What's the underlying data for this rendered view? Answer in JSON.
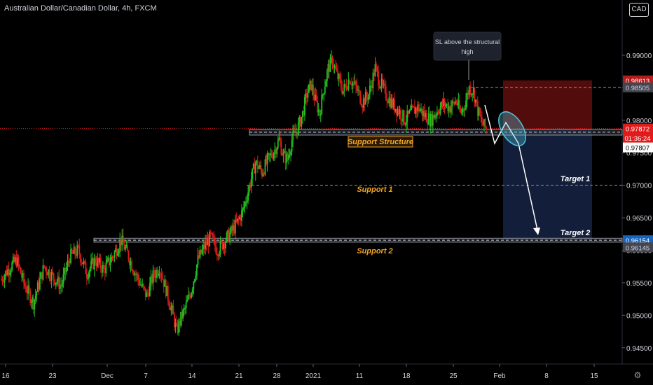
{
  "header": {
    "title": "Australian Dollar/Canadian Dollar, 4h, FXCM",
    "currency_label": "CAD"
  },
  "colors": {
    "background": "#000000",
    "up_candle": "#21c421",
    "down_candle": "#e01b1b",
    "axis_text": "#d1d4dc",
    "annotation_orange": "#f5a623",
    "stop_zone": "#5c0d0d",
    "target_zone": "#14213d",
    "current_price_tag": "#e01b1b"
  },
  "chart_data": {
    "type": "candlestick",
    "symbol": "AUD/CAD",
    "timeframe": "4h",
    "x_tick_labels": [
      "16",
      "23",
      "Dec",
      "7",
      "14",
      "21",
      "28",
      "2021",
      "11",
      "18",
      "25",
      "Feb",
      "8",
      "15"
    ],
    "y_tick_labels": [
      "0.99000",
      "0.98500",
      "0.98000",
      "0.97500",
      "0.97000",
      "0.96500",
      "0.96000",
      "0.95500",
      "0.95000",
      "0.94500"
    ],
    "ylim": [
      0.9425,
      0.9985
    ],
    "price_tags": [
      {
        "label": "0.98613",
        "value": 0.98613,
        "kind": "stop"
      },
      {
        "label": "0.98505",
        "value": 0.98505,
        "kind": "level"
      },
      {
        "label": "0.97872",
        "value": 0.97872,
        "kind": "current"
      },
      {
        "label": "01:36:24",
        "value": 0.9773,
        "kind": "countdown"
      },
      {
        "label": "0.97807",
        "value": 0.97582,
        "kind": "entry"
      },
      {
        "label": "0.96154",
        "value": 0.96154,
        "kind": "target"
      },
      {
        "label": "0.96145",
        "value": 0.96045,
        "kind": "level"
      }
    ],
    "annotations": {
      "callout": "SL above the structural high",
      "support_structure": "Support Structure",
      "support_1": "Support 1",
      "support_2": "Support 2",
      "target_1": "Target 1",
      "target_2": "Target 2"
    },
    "levels": {
      "support_structure": [
        0.97772,
        0.9786
      ],
      "support_1": 0.97,
      "support_2": [
        0.96125,
        0.96185
      ],
      "structural_high": 0.98505,
      "stop_loss": 0.98613,
      "target_1": 0.97,
      "target_2": 0.96154
    },
    "anchor_points": [
      [
        0,
        0.9555
      ],
      [
        6,
        0.957
      ],
      [
        14,
        0.9585
      ],
      [
        22,
        0.9545
      ],
      [
        30,
        0.952
      ],
      [
        40,
        0.9575
      ],
      [
        48,
        0.956
      ],
      [
        56,
        0.9545
      ],
      [
        64,
        0.959
      ],
      [
        72,
        0.96
      ],
      [
        80,
        0.9565
      ],
      [
        88,
        0.9585
      ],
      [
        96,
        0.957
      ],
      [
        104,
        0.959
      ],
      [
        112,
        0.9615
      ],
      [
        118,
        0.9595
      ],
      [
        124,
        0.957
      ],
      [
        130,
        0.9548
      ],
      [
        136,
        0.953
      ],
      [
        142,
        0.956
      ],
      [
        148,
        0.9575
      ],
      [
        154,
        0.954
      ],
      [
        160,
        0.9505
      ],
      [
        164,
        0.9475
      ],
      [
        168,
        0.9495
      ],
      [
        172,
        0.951
      ],
      [
        178,
        0.954
      ],
      [
        184,
        0.9585
      ],
      [
        190,
        0.9605
      ],
      [
        196,
        0.962
      ],
      [
        202,
        0.96
      ],
      [
        208,
        0.9612
      ],
      [
        214,
        0.9625
      ],
      [
        220,
        0.964
      ],
      [
        226,
        0.966
      ],
      [
        230,
        0.9685
      ],
      [
        234,
        0.971
      ],
      [
        238,
        0.9735
      ],
      [
        244,
        0.972
      ],
      [
        250,
        0.974
      ],
      [
        256,
        0.9755
      ],
      [
        260,
        0.977
      ],
      [
        264,
        0.9745
      ],
      [
        268,
        0.974
      ],
      [
        272,
        0.977
      ],
      [
        278,
        0.979
      ],
      [
        282,
        0.981
      ],
      [
        286,
        0.984
      ],
      [
        290,
        0.9855
      ],
      [
        294,
        0.983
      ],
      [
        298,
        0.981
      ],
      [
        302,
        0.985
      ],
      [
        306,
        0.988
      ],
      [
        310,
        0.9892
      ],
      [
        314,
        0.987
      ],
      [
        320,
        0.9845
      ],
      [
        326,
        0.9865
      ],
      [
        332,
        0.985
      ],
      [
        338,
        0.9828
      ],
      [
        344,
        0.984
      ],
      [
        350,
        0.988
      ],
      [
        354,
        0.986
      ],
      [
        360,
        0.984
      ],
      [
        366,
        0.9825
      ],
      [
        372,
        0.9815
      ],
      [
        378,
        0.98
      ],
      [
        384,
        0.9812
      ],
      [
        390,
        0.982
      ],
      [
        396,
        0.9808
      ],
      [
        402,
        0.98
      ],
      [
        408,
        0.9815
      ],
      [
        414,
        0.9825
      ],
      [
        420,
        0.982
      ],
      [
        426,
        0.983
      ],
      [
        430,
        0.981
      ],
      [
        434,
        0.9825
      ],
      [
        438,
        0.985
      ],
      [
        442,
        0.9845
      ],
      [
        446,
        0.9815
      ],
      [
        450,
        0.9795
      ],
      [
        454,
        0.9787
      ]
    ]
  },
  "axis_footer": {
    "settings_label": "⚙"
  }
}
